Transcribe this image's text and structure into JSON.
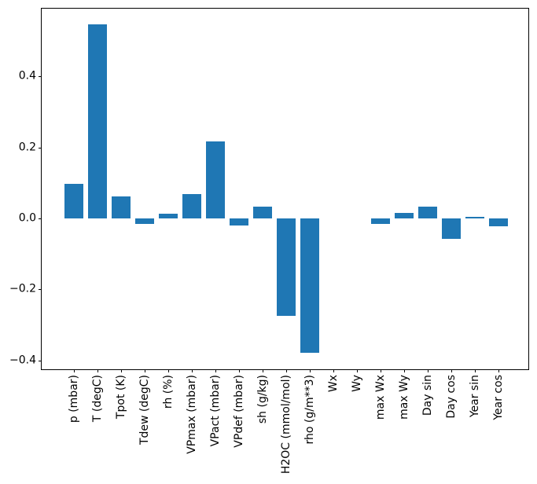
{
  "figure": {
    "background": "#ffffff"
  },
  "chart_data": {
    "type": "bar",
    "title": "",
    "xlabel": "",
    "ylabel": "",
    "categories": [
      "p (mbar)",
      "T (degC)",
      "Tpot (K)",
      "Tdew (degC)",
      "rh (%)",
      "VPmax (mbar)",
      "VPact (mbar)",
      "VPdef (mbar)",
      "sh (g/kg)",
      "H2OC (mmol/mol)",
      "rho (g/m**3)",
      "Wx",
      "Wy",
      "max Wx",
      "max Wy",
      "Day sin",
      "Day cos",
      "Year sin",
      "Year cos"
    ],
    "values": [
      0.098,
      0.547,
      0.062,
      -0.015,
      0.013,
      0.068,
      0.218,
      -0.021,
      0.033,
      -0.274,
      -0.379,
      0.0,
      0.0,
      -0.016,
      0.015,
      0.034,
      -0.057,
      0.004,
      -0.022
    ],
    "bar_color": "#1f77b4",
    "axis_color": "#000000",
    "ylim": [
      -0.4254,
      0.5912
    ],
    "yticks": [
      0.4,
      0.2,
      0.0,
      -0.2,
      -0.4
    ],
    "ytick_labels": [
      "0.4",
      "0.2",
      "0.0",
      "−0.2",
      "−0.4"
    ],
    "x_tick_rotation": 90,
    "grid": false,
    "legend": "none"
  }
}
